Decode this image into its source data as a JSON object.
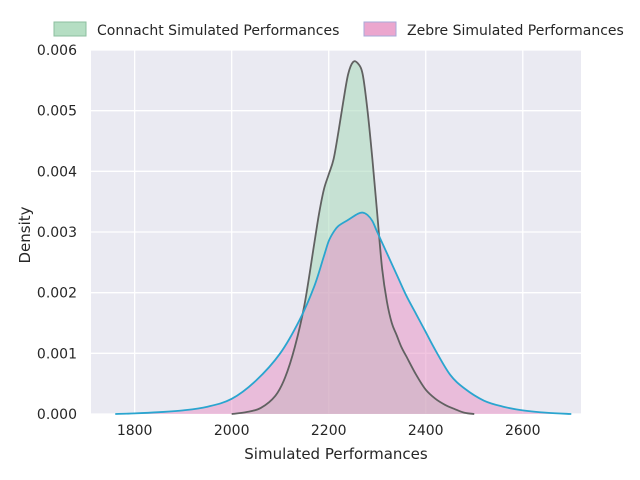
{
  "chart_data": {
    "type": "area",
    "title": "",
    "xlabel": "Simulated Performances",
    "ylabel": "Density",
    "xlim": [
      1710,
      2720
    ],
    "ylim": [
      0,
      0.006
    ],
    "x_ticks": [
      1800,
      2000,
      2200,
      2400,
      2600
    ],
    "x_tick_labels": [
      "1800",
      "2000",
      "2200",
      "2400",
      "2600"
    ],
    "y_ticks": [
      0,
      0.001,
      0.002,
      0.003,
      0.004,
      0.005,
      0.006
    ],
    "y_tick_labels": [
      "0.000",
      "0.001",
      "0.002",
      "0.003",
      "0.004",
      "0.005",
      "0.006"
    ],
    "grid": true,
    "legend_position": "top",
    "background_color": "#eaeaf2",
    "series": [
      {
        "name": "Connacht Simulated Performances",
        "fill_color": "#a8d8b9",
        "line_color": "#616161",
        "x": [
          2000,
          2030,
          2060,
          2090,
          2110,
          2130,
          2150,
          2170,
          2180,
          2190,
          2200,
          2210,
          2220,
          2230,
          2240,
          2250,
          2260,
          2270,
          2280,
          2290,
          2300,
          2310,
          2320,
          2330,
          2340,
          2350,
          2360,
          2380,
          2400,
          2420,
          2440,
          2460,
          2480,
          2500
        ],
        "y": [
          0,
          3e-05,
          0.0001,
          0.0003,
          0.0006,
          0.0011,
          0.0018,
          0.0028,
          0.0033,
          0.0037,
          0.00395,
          0.0042,
          0.00465,
          0.00515,
          0.0056,
          0.0058,
          0.00578,
          0.0056,
          0.005,
          0.0042,
          0.0033,
          0.0024,
          0.00185,
          0.0015,
          0.0013,
          0.0011,
          0.00095,
          0.00065,
          0.0004,
          0.00025,
          0.00015,
          8e-05,
          2e-05,
          0
        ]
      },
      {
        "name": "Zebre Simulated Performances",
        "fill_color": "#e896c6",
        "line_color": "#2aa5cf",
        "x": [
          1760,
          1800,
          1850,
          1900,
          1950,
          2000,
          2050,
          2100,
          2140,
          2170,
          2190,
          2200,
          2210,
          2220,
          2240,
          2260,
          2270,
          2280,
          2290,
          2300,
          2320,
          2340,
          2360,
          2380,
          2400,
          2420,
          2450,
          2480,
          2520,
          2560,
          2600,
          2650,
          2700
        ],
        "y": [
          0,
          1e-05,
          3e-05,
          6e-05,
          0.00012,
          0.00025,
          0.00055,
          0.001,
          0.00155,
          0.0021,
          0.0026,
          0.00285,
          0.003,
          0.0031,
          0.0032,
          0.0033,
          0.00332,
          0.00328,
          0.00318,
          0.003,
          0.00265,
          0.0023,
          0.00195,
          0.00165,
          0.00135,
          0.00105,
          0.00065,
          0.00042,
          0.00022,
          0.00012,
          6e-05,
          2e-05,
          0
        ]
      }
    ]
  }
}
